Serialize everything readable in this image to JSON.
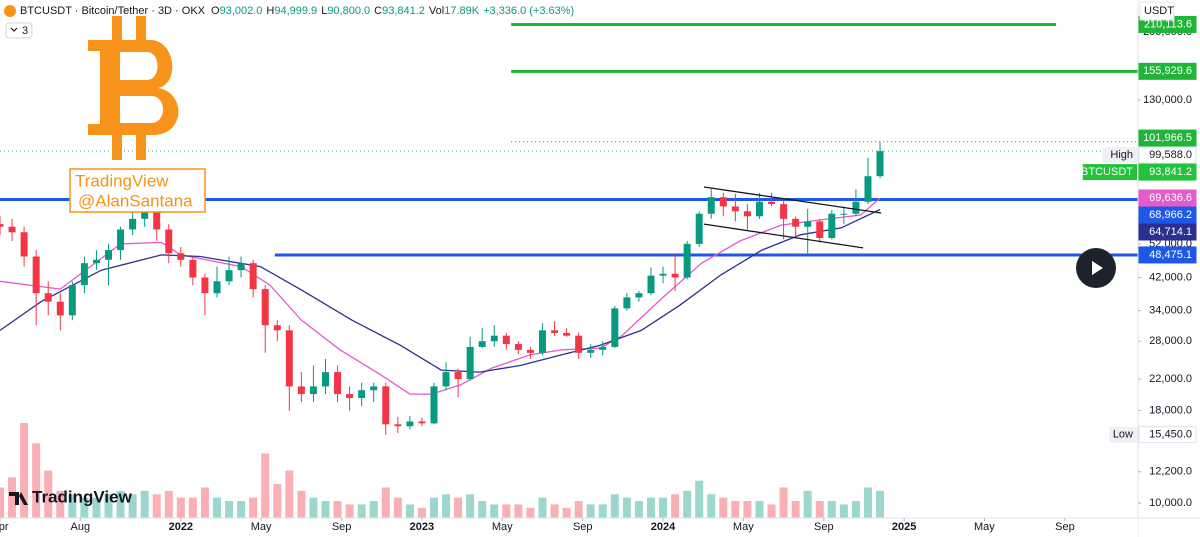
{
  "chart_data": {
    "type": "candlestick",
    "title": "BTCUSDT · Bitcoin/Tether · 3D · OKX",
    "ohlc_header": [
      {
        "key": "O",
        "text": "93,002.0"
      },
      {
        "key": "H",
        "text": "94,999.9"
      },
      {
        "key": "L",
        "text": "90,800.0"
      },
      {
        "key": "C",
        "text": "93,841.2"
      },
      {
        "key": "Vol",
        "text": "17.89K"
      }
    ],
    "change": "+3,336.0 (+3.63%)",
    "indicator_count": "3",
    "currency": "USDT",
    "watermark": [
      "TradingView",
      "@AlanSantana"
    ],
    "logo_text": "TradingView",
    "up_color": "#089981",
    "down_color": "#f23645",
    "log_scale": true,
    "grid": false,
    "xlim": [
      2021.25,
      2025.97
    ],
    "ylim": [
      9090,
      245500
    ],
    "xticks": [
      {
        "value": 2021.25,
        "label": "Apr"
      },
      {
        "value": 2021.583,
        "label": "Aug"
      },
      2022,
      {
        "value": 2022.333,
        "label": "May"
      },
      {
        "value": 2022.667,
        "label": "Sep"
      },
      2023,
      {
        "value": 2023.333,
        "label": "May"
      },
      {
        "value": 2023.667,
        "label": "Sep"
      },
      2024,
      {
        "value": 2024.333,
        "label": "May"
      },
      {
        "value": 2024.667,
        "label": "Sep"
      },
      2025,
      {
        "value": 2025.333,
        "label": "May"
      },
      {
        "value": 2025.667,
        "label": "Sep"
      }
    ],
    "yticks": [
      {
        "value": 10000,
        "label": "10,000.0"
      },
      {
        "value": 12200,
        "label": "12,200.0"
      },
      {
        "value": 18000,
        "label": "18,000.0"
      },
      {
        "value": 22000,
        "label": "22,000.0"
      },
      {
        "value": 28000,
        "label": "28,000.0"
      },
      {
        "value": 34000,
        "label": "34,000.0"
      },
      {
        "value": 42000,
        "label": "42,000.0"
      },
      {
        "value": 52000,
        "label": "52,000.0"
      },
      {
        "value": 80000,
        "label": "80,000.0"
      },
      {
        "value": 130000,
        "label": "130,000.0"
      },
      {
        "value": 200000,
        "label": "200,000.0"
      }
    ],
    "x": [
      2021.25,
      2021.3,
      2021.35,
      2021.4,
      2021.45,
      2021.5,
      2021.55,
      2021.6,
      2021.65,
      2021.7,
      2021.75,
      2021.8,
      2021.85,
      2021.9,
      2021.95,
      2022.0,
      2022.05,
      2022.1,
      2022.15,
      2022.2,
      2022.25,
      2022.3,
      2022.35,
      2022.4,
      2022.45,
      2022.5,
      2022.55,
      2022.6,
      2022.65,
      2022.7,
      2022.75,
      2022.8,
      2022.85,
      2022.9,
      2022.95,
      2023.0,
      2023.05,
      2023.1,
      2023.15,
      2023.2,
      2023.25,
      2023.3,
      2023.35,
      2023.4,
      2023.45,
      2023.5,
      2023.55,
      2023.6,
      2023.65,
      2023.7,
      2023.75,
      2023.8,
      2023.85,
      2023.9,
      2023.95,
      2024.0,
      2024.05,
      2024.1,
      2024.15,
      2024.2,
      2024.25,
      2024.3,
      2024.35,
      2024.4,
      2024.45,
      2024.5,
      2024.55,
      2024.6,
      2024.65,
      2024.7,
      2024.75,
      2024.8,
      2024.85,
      2024.9
    ],
    "candles": [
      [
        59000,
        62000,
        55000,
        58000
      ],
      [
        58000,
        61000,
        53000,
        56000
      ],
      [
        56000,
        58000,
        45000,
        48000
      ],
      [
        48000,
        50000,
        31000,
        38000
      ],
      [
        38000,
        41000,
        33000,
        36000
      ],
      [
        36000,
        38000,
        30000,
        33000
      ],
      [
        33000,
        41000,
        32000,
        40000
      ],
      [
        40000,
        48000,
        38000,
        46000
      ],
      [
        46000,
        50000,
        44000,
        47000
      ],
      [
        47000,
        52000,
        40000,
        50000
      ],
      [
        50000,
        58000,
        47000,
        57000
      ],
      [
        57000,
        64000,
        55000,
        61000
      ],
      [
        61000,
        69000,
        58000,
        64000
      ],
      [
        64000,
        66000,
        53000,
        57000
      ],
      [
        57000,
        59000,
        46000,
        49000
      ],
      [
        49000,
        51000,
        45000,
        47000
      ],
      [
        47000,
        48000,
        40000,
        42000
      ],
      [
        42000,
        43000,
        33000,
        38000
      ],
      [
        38000,
        45000,
        37000,
        41000
      ],
      [
        41000,
        48000,
        40000,
        44000
      ],
      [
        44000,
        48000,
        42000,
        46000
      ],
      [
        46000,
        47000,
        37000,
        39000
      ],
      [
        39000,
        40000,
        26000,
        31000
      ],
      [
        31000,
        32000,
        28000,
        30000
      ],
      [
        30000,
        31000,
        18000,
        21000
      ],
      [
        21000,
        23000,
        19000,
        20000
      ],
      [
        20000,
        24000,
        19000,
        21000
      ],
      [
        21000,
        25000,
        20000,
        23000
      ],
      [
        23000,
        24000,
        19000,
        20000
      ],
      [
        20000,
        21000,
        18000,
        19500
      ],
      [
        19500,
        21500,
        18500,
        20500
      ],
      [
        20500,
        21500,
        19000,
        21000
      ],
      [
        21000,
        21500,
        15450,
        16500
      ],
      [
        16500,
        17300,
        15600,
        16300
      ],
      [
        16300,
        17400,
        16000,
        16800
      ],
      [
        16800,
        17200,
        16300,
        16600
      ],
      [
        16600,
        21500,
        16500,
        21000
      ],
      [
        21000,
        24500,
        20500,
        23000
      ],
      [
        23000,
        23500,
        19600,
        22000
      ],
      [
        22000,
        28800,
        21800,
        27000
      ],
      [
        27000,
        30500,
        26800,
        28000
      ],
      [
        28000,
        31000,
        27000,
        29000
      ],
      [
        29000,
        29500,
        26500,
        27500
      ],
      [
        27500,
        28000,
        25800,
        26500
      ],
      [
        26500,
        27000,
        25000,
        26000
      ],
      [
        26000,
        31400,
        25600,
        30000
      ],
      [
        30000,
        31800,
        29000,
        29500
      ],
      [
        29500,
        30400,
        28800,
        29000
      ],
      [
        29000,
        29600,
        25000,
        26000
      ],
      [
        26000,
        27500,
        25200,
        26500
      ],
      [
        26500,
        28000,
        25600,
        27000
      ],
      [
        27000,
        35000,
        26800,
        34500
      ],
      [
        34500,
        38000,
        34000,
        37000
      ],
      [
        37000,
        38500,
        36000,
        38000
      ],
      [
        38000,
        44800,
        37500,
        42500
      ],
      [
        42500,
        45000,
        40500,
        43000
      ],
      [
        43000,
        49000,
        38500,
        42000
      ],
      [
        42000,
        53000,
        41500,
        52000
      ],
      [
        52000,
        64000,
        51000,
        63000
      ],
      [
        63000,
        73800,
        61000,
        70000
      ],
      [
        70000,
        72000,
        62000,
        66000
      ],
      [
        66000,
        71500,
        60000,
        64000
      ],
      [
        64000,
        67000,
        57000,
        62000
      ],
      [
        62000,
        71900,
        61000,
        68000
      ],
      [
        68000,
        72000,
        66000,
        67000
      ],
      [
        67000,
        68500,
        53500,
        61000
      ],
      [
        61000,
        62000,
        54000,
        58000
      ],
      [
        58000,
        65000,
        49000,
        60000
      ],
      [
        60000,
        61000,
        52500,
        54000
      ],
      [
        54000,
        64500,
        53500,
        63000
      ],
      [
        63000,
        66000,
        58900,
        63000
      ],
      [
        63000,
        73600,
        62000,
        68000
      ],
      [
        68000,
        90000,
        67000,
        80000
      ],
      [
        80000,
        99588,
        79000,
        93841.2
      ]
    ],
    "volume": [
      45,
      60,
      140,
      110,
      70,
      40,
      35,
      30,
      30,
      35,
      40,
      35,
      40,
      35,
      40,
      30,
      30,
      45,
      30,
      25,
      25,
      30,
      95,
      50,
      70,
      40,
      30,
      25,
      25,
      20,
      20,
      25,
      45,
      30,
      20,
      15,
      30,
      35,
      30,
      35,
      25,
      20,
      20,
      20,
      15,
      30,
      20,
      15,
      25,
      20,
      20,
      35,
      30,
      25,
      30,
      30,
      35,
      40,
      55,
      35,
      30,
      25,
      25,
      25,
      20,
      45,
      25,
      40,
      25,
      25,
      20,
      25,
      45,
      40
    ],
    "series": [
      {
        "color": "#e45bc9",
        "last_label": "69,636.6",
        "x": [
          2021.25,
          2021.5,
          2021.75,
          2021.92,
          2022.0,
          2022.25,
          2022.37,
          2022.5,
          2022.66,
          2022.83,
          2022.95,
          2023.04,
          2023.16,
          2023.29,
          2023.45,
          2023.58,
          2023.74,
          2023.83,
          2024.0,
          2024.16,
          2024.32,
          2024.49,
          2024.66,
          2024.82,
          2024.9
        ],
        "values": [
          41000,
          39000,
          52000,
          52500,
          48500,
          45000,
          40000,
          32000,
          26500,
          22600,
          20000,
          20000,
          21200,
          23600,
          25700,
          26500,
          26800,
          29000,
          37000,
          46000,
          53000,
          58600,
          60700,
          62500,
          69636.6
        ]
      },
      {
        "color": "#2b2f8f",
        "last_label": "64,714.1",
        "x": [
          2021.25,
          2021.42,
          2021.67,
          2021.92,
          2022.08,
          2022.33,
          2022.5,
          2022.71,
          2022.91,
          2023.08,
          2023.24,
          2023.41,
          2023.58,
          2023.74,
          2023.91,
          2024.07,
          2024.24,
          2024.41,
          2024.57,
          2024.74,
          2024.9
        ],
        "values": [
          30000,
          36000,
          44000,
          48500,
          48000,
          45000,
          38800,
          32000,
          27300,
          23300,
          23000,
          24000,
          25700,
          27300,
          30000,
          35200,
          42700,
          50000,
          55100,
          57600,
          64714.1
        ]
      }
    ],
    "trendlines": [
      {
        "x": [
          2024.17,
          2024.905
        ],
        "y": [
          74700,
          63300
        ]
      },
      {
        "x": [
          2024.17,
          2024.83
        ],
        "y": [
          59000,
          50700
        ]
      }
    ],
    "levels": [
      {
        "value": 210113.6,
        "label": "210,113.6",
        "box": "#1fb537",
        "text_color": "#ffffff",
        "line": {
          "color": "#1fb537",
          "style": "solid",
          "start": 2023.37,
          "end": 2025.63
        }
      },
      {
        "value": 155929.6,
        "label": "155,929.6",
        "box": "#1fb537",
        "text_color": "#ffffff",
        "line": {
          "color": "#1fb537",
          "style": "solid",
          "start": 2023.37
        }
      },
      {
        "value": 101966.5,
        "label": "101,966.5",
        "box": "#1fb537",
        "text_color": "#ffffff"
      },
      {
        "value": 99588,
        "label": "99,588.0",
        "tag": "High",
        "box": "#ffffff",
        "text_color": "#131722",
        "line": {
          "color": "#5d606b",
          "style": "dotted",
          "start": 2023.37
        }
      },
      {
        "value": 93841.2,
        "label": "93,841.2",
        "tag": "BTCUSDT",
        "box": "#22c33a",
        "text_color": "#ffffff",
        "line": {
          "color": "#22c33a",
          "style": "dotted"
        }
      },
      {
        "value": 68966.2,
        "label": "68,966.2",
        "box": "#1f57e6",
        "text_color": "#ffffff",
        "line": {
          "color": "#1f57e6",
          "style": "solid"
        }
      },
      {
        "value": 48475.1,
        "label": "48,475.1",
        "box": "#1f57e6",
        "text_color": "#ffffff",
        "line": {
          "color": "#1f57e6",
          "style": "solid",
          "start": 2022.39
        }
      },
      {
        "value": 15450,
        "label": "15,450.0",
        "tag": "Low",
        "box": "#ffffff",
        "text_color": "#131722"
      }
    ]
  }
}
